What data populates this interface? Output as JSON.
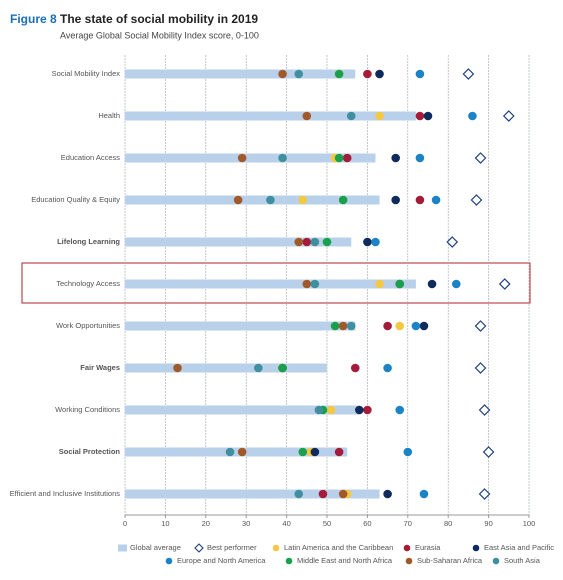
{
  "chart_data": {
    "type": "dot",
    "figure_label": "Figure 8",
    "title": "The state of social mobility in 2019",
    "subtitle": "Average Global Social Mobility Index score, 0-100",
    "categories": [
      "Social Mobility Index",
      "Health",
      "Education Access",
      "Education Quality & Equity",
      "Lifelong Learning",
      "Technology Access",
      "Work Opportunities",
      "Fair Wages",
      "Working Conditions",
      "Social Protection",
      "Efficient and Inclusive Institutions"
    ],
    "emphasized": [
      false,
      false,
      false,
      false,
      true,
      false,
      false,
      true,
      false,
      true,
      false
    ],
    "xlim": [
      0,
      100
    ],
    "xticks": [
      0,
      10,
      20,
      30,
      40,
      50,
      60,
      70,
      80,
      90,
      100
    ],
    "grid": true,
    "series": [
      {
        "name": "Global average",
        "marker": "bar",
        "color": "#b9d0ea",
        "values": [
          57,
          72,
          62,
          63,
          56,
          72,
          57,
          50,
          58,
          55,
          63
        ]
      },
      {
        "name": "Best performer",
        "marker": "diamond",
        "color": "#1d3f7a",
        "values": [
          85,
          95,
          88,
          87,
          81,
          94,
          88,
          88,
          89,
          90,
          89
        ]
      },
      {
        "name": "Latin America and the Caribbean",
        "marker": "dot",
        "color": "#f5c842",
        "values": [
          53,
          63,
          52,
          44,
          null,
          63,
          68,
          39,
          51,
          46,
          55
        ]
      },
      {
        "name": "Eurasia",
        "marker": "dot",
        "color": "#a51c3a",
        "values": [
          60,
          73,
          55,
          73,
          45,
          68,
          65,
          57,
          60,
          53,
          49
        ]
      },
      {
        "name": "East Asia and Pacific",
        "marker": "dot",
        "color": "#0f2a5c",
        "values": [
          63,
          75,
          67,
          67,
          60,
          76,
          74,
          39,
          58,
          47,
          65
        ]
      },
      {
        "name": "Europe and North America",
        "marker": "dot",
        "color": "#1a84c6",
        "values": [
          73,
          86,
          73,
          77,
          62,
          82,
          72,
          65,
          68,
          70,
          74
        ]
      },
      {
        "name": "Middle East and North Africa",
        "marker": "dot",
        "color": "#1aa04b",
        "values": [
          53,
          null,
          53,
          54,
          50,
          68,
          52,
          39,
          49,
          44,
          null
        ]
      },
      {
        "name": "Sub-Saharan Africa",
        "marker": "dot",
        "color": "#a2592a",
        "values": [
          39,
          45,
          29,
          28,
          43,
          45,
          54,
          13,
          null,
          29,
          54
        ]
      },
      {
        "name": "South Asia",
        "marker": "dot",
        "color": "#3f8fa0",
        "values": [
          43,
          56,
          39,
          36,
          47,
          47,
          56,
          33,
          48,
          26,
          43
        ]
      }
    ]
  }
}
